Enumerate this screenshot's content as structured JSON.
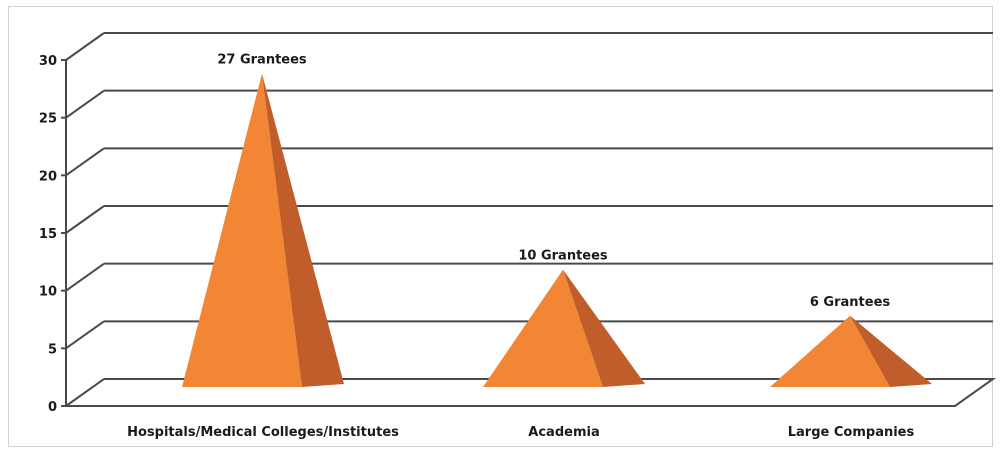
{
  "chart_data": {
    "type": "bar",
    "shape": "pyramid-3d",
    "categories": [
      "Hospitals/Medical Colleges/Institutes",
      "Academia",
      "Large Companies"
    ],
    "values": [
      27,
      10,
      6
    ],
    "data_labels": [
      "27 Grantees",
      "10 Grantees",
      "6 Grantees"
    ],
    "yticks": [
      "0",
      "5",
      "10",
      "15",
      "20",
      "25",
      "30"
    ],
    "ylim": [
      0,
      30
    ],
    "grid": true,
    "legend": "none",
    "colors": {
      "front": "#f28634",
      "side": "#c05d2a",
      "grid": "#4a4a4a"
    }
  }
}
